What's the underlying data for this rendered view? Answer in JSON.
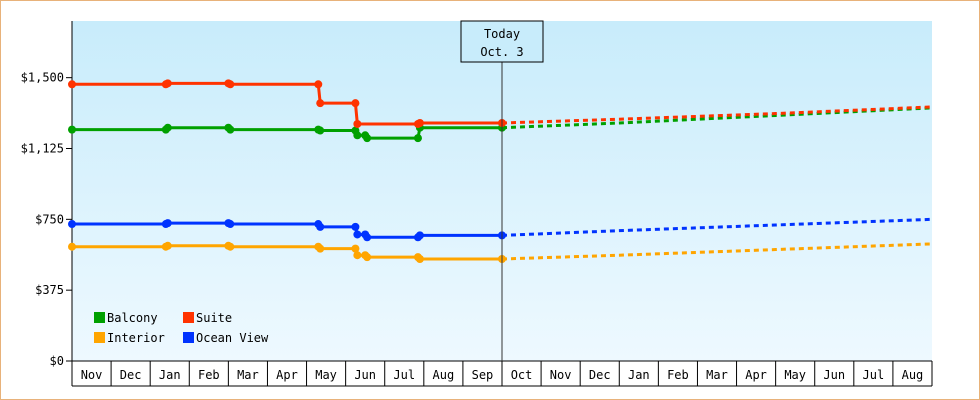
{
  "chart_data": {
    "type": "line",
    "title": "",
    "xlabel": "",
    "ylabel": "",
    "ylim": [
      0,
      1500
    ],
    "y_ticks": [
      "$0",
      "$375",
      "$750",
      "$1,125",
      "$1,500"
    ],
    "y_tick_values": [
      0,
      375,
      750,
      1125,
      1500
    ],
    "x_ticks": [
      "Nov",
      "Dec",
      "Jan",
      "Feb",
      "Mar",
      "Apr",
      "May",
      "Jun",
      "Jul",
      "Aug",
      "Sep",
      "Oct",
      "Nov",
      "Dec",
      "Jan",
      "Feb",
      "Mar",
      "Apr",
      "May",
      "Jun",
      "Jul",
      "Aug"
    ],
    "today_label": [
      "Today",
      "Oct. 3"
    ],
    "today_x": 11,
    "grid": false,
    "legend_position": "bottom-left",
    "series": [
      {
        "name": "Balcony",
        "color": "#00a000",
        "history": [
          [
            0,
            1225
          ],
          [
            2.4,
            1225
          ],
          [
            2.45,
            1235
          ],
          [
            4.0,
            1235
          ],
          [
            4.05,
            1225
          ],
          [
            6.3,
            1225
          ],
          [
            6.35,
            1220
          ],
          [
            7.25,
            1220
          ],
          [
            7.3,
            1195
          ],
          [
            7.5,
            1195
          ],
          [
            7.55,
            1180
          ],
          [
            8.85,
            1180
          ],
          [
            8.9,
            1235
          ],
          [
            11,
            1235
          ]
        ],
        "markers": [
          0,
          2.4,
          2.45,
          4.0,
          4.05,
          6.3,
          6.35,
          7.25,
          7.3,
          7.5,
          7.55,
          8.85,
          8.9,
          11
        ],
        "forecast": [
          [
            11,
            1235
          ],
          [
            14,
            1260
          ],
          [
            18,
            1300
          ],
          [
            22,
            1340
          ]
        ]
      },
      {
        "name": "Suite",
        "color": "#ff3300",
        "history": [
          [
            0,
            1465
          ],
          [
            2.4,
            1465
          ],
          [
            2.45,
            1470
          ],
          [
            4.0,
            1470
          ],
          [
            4.05,
            1465
          ],
          [
            6.3,
            1465
          ],
          [
            6.35,
            1365
          ],
          [
            7.25,
            1365
          ],
          [
            7.3,
            1255
          ],
          [
            8.85,
            1255
          ],
          [
            8.9,
            1260
          ],
          [
            11,
            1260
          ]
        ],
        "markers": [
          0,
          2.4,
          2.45,
          4.0,
          4.05,
          6.3,
          6.35,
          7.25,
          7.3,
          8.85,
          8.9,
          11
        ],
        "forecast": [
          [
            11,
            1260
          ],
          [
            14,
            1280
          ],
          [
            18,
            1310
          ],
          [
            22,
            1345
          ]
        ]
      },
      {
        "name": "Interior",
        "color": "#ffa500",
        "history": [
          [
            0,
            605
          ],
          [
            2.4,
            605
          ],
          [
            2.45,
            610
          ],
          [
            4.0,
            610
          ],
          [
            4.05,
            605
          ],
          [
            6.3,
            605
          ],
          [
            6.35,
            595
          ],
          [
            7.25,
            595
          ],
          [
            7.3,
            560
          ],
          [
            7.5,
            560
          ],
          [
            7.55,
            550
          ],
          [
            8.85,
            550
          ],
          [
            8.9,
            540
          ],
          [
            11,
            540
          ]
        ],
        "markers": [
          0,
          2.4,
          2.45,
          4.0,
          4.05,
          6.3,
          6.35,
          7.25,
          7.3,
          7.5,
          7.55,
          8.85,
          8.9,
          11
        ],
        "forecast": [
          [
            11,
            540
          ],
          [
            14,
            560
          ],
          [
            18,
            590
          ],
          [
            22,
            620
          ]
        ]
      },
      {
        "name": "Ocean View",
        "color": "#0033ff",
        "history": [
          [
            0,
            725
          ],
          [
            2.4,
            725
          ],
          [
            2.45,
            730
          ],
          [
            4.0,
            730
          ],
          [
            4.05,
            725
          ],
          [
            6.3,
            725
          ],
          [
            6.35,
            710
          ],
          [
            7.25,
            710
          ],
          [
            7.3,
            670
          ],
          [
            7.5,
            670
          ],
          [
            7.55,
            655
          ],
          [
            8.85,
            655
          ],
          [
            8.9,
            665
          ],
          [
            11,
            665
          ]
        ],
        "markers": [
          0,
          2.4,
          2.45,
          4.0,
          4.05,
          6.3,
          6.35,
          7.25,
          7.3,
          7.5,
          7.55,
          8.85,
          8.9,
          11
        ],
        "forecast": [
          [
            11,
            665
          ],
          [
            14,
            690
          ],
          [
            18,
            720
          ],
          [
            22,
            750
          ]
        ]
      }
    ]
  }
}
